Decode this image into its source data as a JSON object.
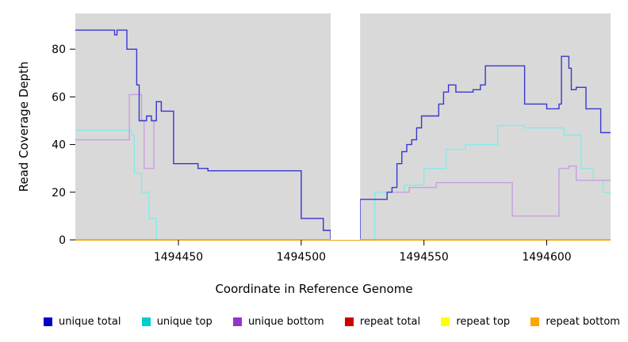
{
  "chart_data": {
    "type": "line",
    "step": true,
    "title": "",
    "xlabel": "Coordinate in Reference Genome",
    "ylabel": "Read Coverage Depth",
    "xlim": [
      1494408,
      1494626
    ],
    "ylim": [
      0,
      95
    ],
    "x_ticks": [
      1494450,
      1494500,
      1494550,
      1494600
    ],
    "y_ticks": [
      0,
      20,
      40,
      60,
      80
    ],
    "grid": false,
    "legend_position": "bottom",
    "plot_bg": "#d9d9d9",
    "gap_band": {
      "x_start": 1494512,
      "x_end": 1494524,
      "color": "#ffffff"
    },
    "series": [
      {
        "name": "unique top",
        "color": "#87e9e9",
        "legend_color": "#00cdcd",
        "points": [
          [
            1494408,
            46
          ],
          [
            1494429,
            46
          ],
          [
            1494431,
            44
          ],
          [
            1494432,
            28
          ],
          [
            1494434,
            28
          ],
          [
            1494435,
            20
          ],
          [
            1494437,
            20
          ],
          [
            1494438,
            9
          ],
          [
            1494440,
            9
          ],
          [
            1494441,
            0
          ],
          [
            1494529,
            0
          ],
          [
            1494530,
            20
          ],
          [
            1494541,
            20
          ],
          [
            1494542,
            23
          ],
          [
            1494549,
            23
          ],
          [
            1494550,
            30
          ],
          [
            1494558,
            30
          ],
          [
            1494559,
            38
          ],
          [
            1494566,
            38
          ],
          [
            1494567,
            40
          ],
          [
            1494579,
            40
          ],
          [
            1494580,
            48
          ],
          [
            1494590,
            48
          ],
          [
            1494591,
            47
          ],
          [
            1494606,
            47
          ],
          [
            1494607,
            44
          ],
          [
            1494613,
            44
          ],
          [
            1494614,
            30
          ],
          [
            1494618,
            30
          ],
          [
            1494619,
            25
          ],
          [
            1494622,
            25
          ],
          [
            1494623,
            20
          ],
          [
            1494626,
            20
          ]
        ]
      },
      {
        "name": "unique bottom",
        "color": "#c79fdf",
        "legend_color": "#9932cc",
        "points": [
          [
            1494408,
            42
          ],
          [
            1494429,
            42
          ],
          [
            1494430,
            61
          ],
          [
            1494434,
            61
          ],
          [
            1494435,
            50
          ],
          [
            1494436,
            30
          ],
          [
            1494439,
            30
          ],
          [
            1494440,
            50
          ],
          [
            1494441,
            58
          ],
          [
            1494443,
            54
          ],
          [
            1494447,
            54
          ],
          [
            1494448,
            32
          ],
          [
            1494457,
            32
          ],
          [
            1494458,
            30
          ],
          [
            1494461,
            30
          ],
          [
            1494462,
            29
          ],
          [
            1494499,
            29
          ],
          [
            1494500,
            9
          ],
          [
            1494508,
            9
          ],
          [
            1494509,
            4
          ],
          [
            1494512,
            0
          ],
          [
            1494524,
            17
          ],
          [
            1494534,
            17
          ],
          [
            1494535,
            20
          ],
          [
            1494540,
            20
          ],
          [
            1494544,
            22
          ],
          [
            1494554,
            22
          ],
          [
            1494555,
            24
          ],
          [
            1494585,
            24
          ],
          [
            1494586,
            10
          ],
          [
            1494604,
            10
          ],
          [
            1494605,
            30
          ],
          [
            1494608,
            30
          ],
          [
            1494609,
            31
          ],
          [
            1494611,
            31
          ],
          [
            1494612,
            25
          ],
          [
            1494626,
            25
          ]
        ]
      },
      {
        "name": "unique total",
        "color": "#3939cf",
        "legend_color": "#0000cd",
        "points": [
          [
            1494408,
            88
          ],
          [
            1494424,
            86
          ],
          [
            1494425,
            88
          ],
          [
            1494428,
            88
          ],
          [
            1494429,
            80
          ],
          [
            1494432,
            80
          ],
          [
            1494433,
            65
          ],
          [
            1494434,
            50
          ],
          [
            1494437,
            52
          ],
          [
            1494439,
            50
          ],
          [
            1494441,
            58
          ],
          [
            1494443,
            54
          ],
          [
            1494447,
            54
          ],
          [
            1494448,
            32
          ],
          [
            1494457,
            32
          ],
          [
            1494458,
            30
          ],
          [
            1494461,
            30
          ],
          [
            1494462,
            29
          ],
          [
            1494499,
            29
          ],
          [
            1494500,
            9
          ],
          [
            1494508,
            9
          ],
          [
            1494509,
            4
          ],
          [
            1494512,
            0
          ],
          [
            1494524,
            17
          ],
          [
            1494534,
            17
          ],
          [
            1494535,
            20
          ],
          [
            1494537,
            22
          ],
          [
            1494539,
            32
          ],
          [
            1494541,
            37
          ],
          [
            1494543,
            40
          ],
          [
            1494545,
            42
          ],
          [
            1494547,
            47
          ],
          [
            1494549,
            52
          ],
          [
            1494555,
            52
          ],
          [
            1494556,
            57
          ],
          [
            1494558,
            62
          ],
          [
            1494560,
            65
          ],
          [
            1494563,
            62
          ],
          [
            1494569,
            62
          ],
          [
            1494570,
            63
          ],
          [
            1494573,
            65
          ],
          [
            1494575,
            73
          ],
          [
            1494590,
            73
          ],
          [
            1494591,
            57
          ],
          [
            1494599,
            57
          ],
          [
            1494600,
            55
          ],
          [
            1494604,
            55
          ],
          [
            1494605,
            57
          ],
          [
            1494606,
            77
          ],
          [
            1494608,
            77
          ],
          [
            1494609,
            72
          ],
          [
            1494610,
            63
          ],
          [
            1494612,
            64
          ],
          [
            1494615,
            64
          ],
          [
            1494616,
            55
          ],
          [
            1494621,
            55
          ],
          [
            1494622,
            45
          ],
          [
            1494626,
            45
          ]
        ]
      },
      {
        "name": "repeat total",
        "color": "#cd0000",
        "legend_color": "#cd0000",
        "points": [
          [
            1494408,
            0
          ],
          [
            1494626,
            0
          ]
        ]
      },
      {
        "name": "repeat top",
        "color": "#ffff00",
        "legend_color": "#ffff00",
        "points": [
          [
            1494408,
            0
          ],
          [
            1494626,
            0
          ]
        ]
      },
      {
        "name": "repeat bottom",
        "color": "#ffa500",
        "legend_color": "#ffa500",
        "points": [
          [
            1494408,
            0
          ],
          [
            1494626,
            0
          ]
        ]
      }
    ]
  }
}
